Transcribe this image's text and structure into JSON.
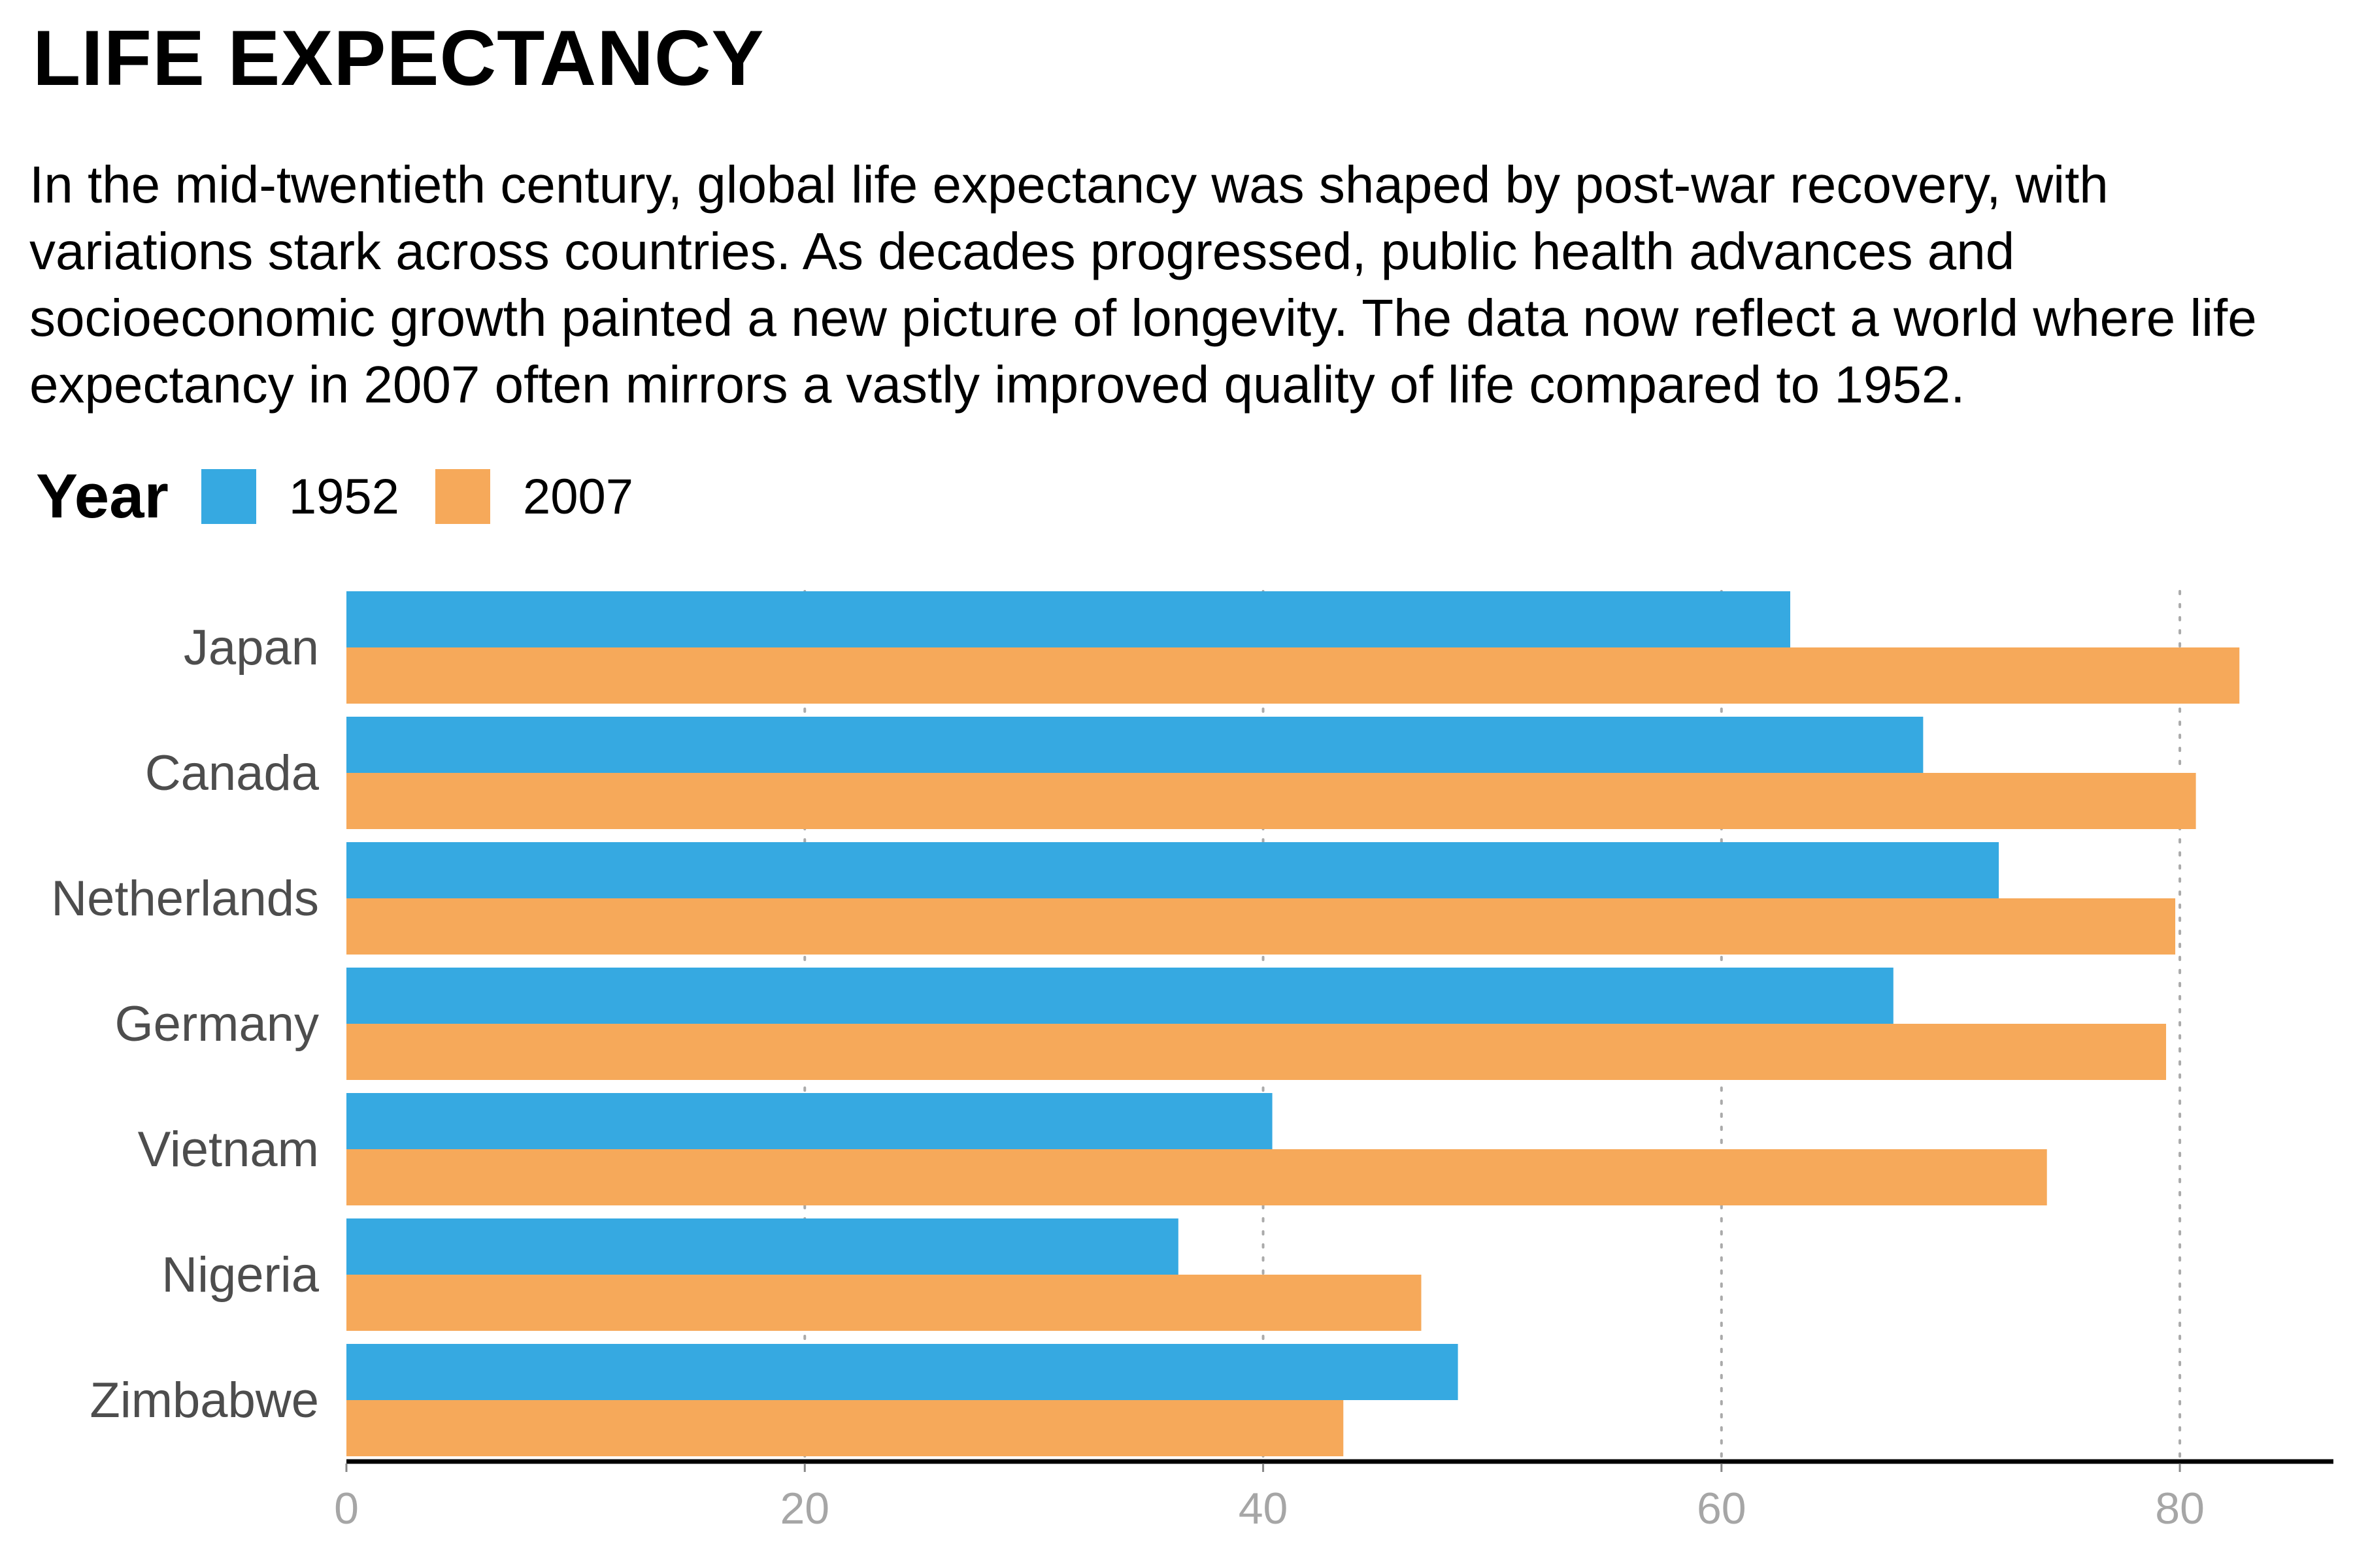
{
  "title": "LIFE EXPECTANCY",
  "subtitle": "In the mid-twentieth century, global life expectancy was shaped by post-war recovery, with variations stark across countries. As decades progressed, public health advances and socioeconomic growth painted a new picture of longevity. The data now reflect a world where life expectancy in 2007 often mirrors a vastly improved quality of life compared to 1952.",
  "legend": {
    "title": "Year",
    "items": [
      {
        "label": "1952",
        "color": "#36A9E1"
      },
      {
        "label": "2007",
        "color": "#F6A95A"
      }
    ]
  },
  "chart_data": {
    "type": "bar",
    "orientation": "horizontal",
    "categories": [
      "Japan",
      "Canada",
      "Netherlands",
      "Germany",
      "Vietnam",
      "Nigeria",
      "Zimbabwe"
    ],
    "series": [
      {
        "name": "1952",
        "color": "#36A9E1",
        "values": [
          63.0,
          68.8,
          72.1,
          67.5,
          40.4,
          36.3,
          48.5
        ]
      },
      {
        "name": "2007",
        "color": "#F6A95A",
        "values": [
          82.6,
          80.7,
          79.8,
          79.4,
          74.2,
          46.9,
          43.5
        ]
      }
    ],
    "xticks": [
      0,
      20,
      40,
      60,
      80
    ],
    "xlim": [
      0,
      86.7
    ],
    "grid": "vertical dotted",
    "legend_position": "top-left",
    "xlabel": "",
    "ylabel": ""
  }
}
